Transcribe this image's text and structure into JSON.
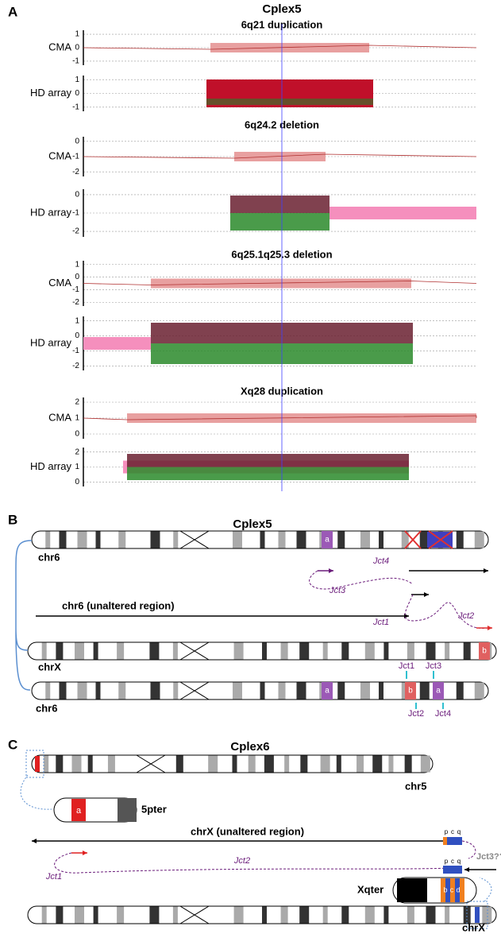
{
  "panel_a": {
    "label": "A",
    "title": "Cplex5",
    "plots": [
      {
        "title": "6q21 duplication",
        "rows": [
          {
            "label": "CMA",
            "ticks": [
              "1",
              "0",
              "-1"
            ]
          },
          {
            "label": "HD array",
            "ticks": [
              "1",
              "0",
              "-1"
            ]
          }
        ]
      },
      {
        "title": "6q24.2 deletion",
        "rows": [
          {
            "label": "CMA",
            "ticks": [
              "0",
              "-1",
              "-2"
            ]
          },
          {
            "label": "HD array",
            "ticks": [
              "0",
              "-1",
              "-2"
            ]
          }
        ]
      },
      {
        "title": "6q25.1q25.3 deletion",
        "rows": [
          {
            "label": "CMA",
            "ticks": [
              "1",
              "0",
              "-1",
              "-2"
            ]
          },
          {
            "label": "HD array",
            "ticks": [
              "1",
              "0",
              "-1",
              "-2"
            ]
          }
        ]
      },
      {
        "title": "Xq28 duplication",
        "rows": [
          {
            "label": "CMA",
            "ticks": [
              "2",
              "1",
              "0"
            ]
          },
          {
            "label": "HD array",
            "ticks": [
              "2",
              "1",
              "0"
            ]
          }
        ]
      }
    ]
  },
  "panel_b": {
    "label": "B",
    "title": "Cplex5",
    "chr_top": "chr6",
    "chr_mid": "chrX",
    "chr_bottom": "chr6",
    "unaltered": "chr6 (unaltered region)",
    "band_a": "a",
    "band_b": "b",
    "jct_top": [
      "Jct4",
      "Jct3",
      "Jct1",
      "Jct2"
    ],
    "jct_bottom": [
      "Jct1",
      "Jct3",
      "Jct2",
      "Jct4"
    ]
  },
  "panel_c": {
    "label": "C",
    "title": "Cplex6",
    "chr_top": "chr5",
    "pter": "5pter",
    "unaltered": "chrX (unaltered region)",
    "jct": [
      "Jct1",
      "Jct2",
      "Jct3??"
    ],
    "qter": "Xqter",
    "chr_bottom": "chrX",
    "band_a": "a",
    "bands_bcd": [
      "b",
      "c",
      "d"
    ],
    "pcq": [
      "p",
      "c",
      "q"
    ]
  }
}
